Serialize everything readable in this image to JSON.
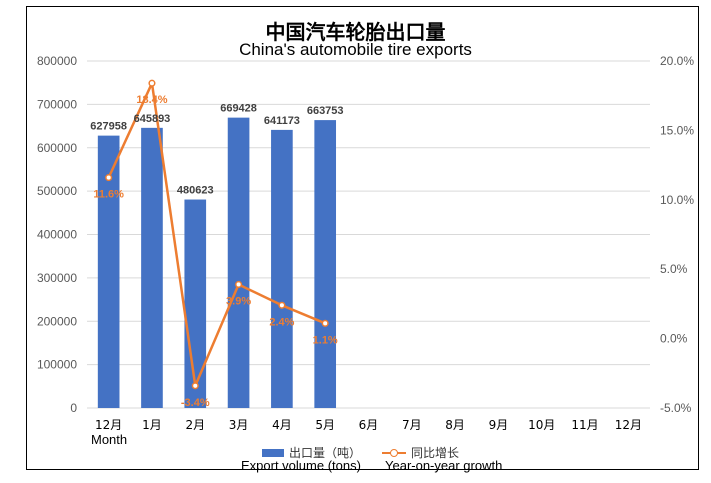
{
  "title_cn": "中国汽车轮胎出口量",
  "title_en": "China's automobile tire exports",
  "xlabel": "Month",
  "legend": {
    "bar_label_cn": "出口量（吨）",
    "bar_label_en": "Export volume (tons)",
    "line_label_cn": "同比增长",
    "line_label_en": "Year-on-year growth"
  },
  "colors": {
    "bar": "#4472c4",
    "line": "#ed7d31",
    "grid": "#d9d9d9",
    "tick": "#595959"
  },
  "chart_data": {
    "type": "bar",
    "categories": [
      "12月",
      "1月",
      "2月",
      "3月",
      "4月",
      "5月",
      "6月",
      "7月",
      "8月",
      "9月",
      "10月",
      "11月",
      "12月"
    ],
    "series": [
      {
        "name": "出口量（吨）",
        "type": "bar",
        "axis": "left",
        "values": [
          627958,
          645893,
          480623,
          669428,
          641173,
          663753,
          null,
          null,
          null,
          null,
          null,
          null,
          null
        ],
        "labels": [
          "627958",
          "645893",
          "480623",
          "669428",
          "641173",
          "663753"
        ]
      },
      {
        "name": "同比增长",
        "type": "line",
        "axis": "right",
        "values": [
          11.6,
          18.4,
          -3.4,
          3.9,
          2.4,
          1.1,
          null,
          null,
          null,
          null,
          null,
          null,
          null
        ],
        "labels": [
          "11.6%",
          "18.4%",
          "-3.4%",
          "3.9%",
          "2.4%",
          "1.1%"
        ]
      }
    ],
    "y_left": {
      "lim": [
        0,
        800000
      ],
      "ticks": [
        "0",
        "100000",
        "200000",
        "300000",
        "400000",
        "500000",
        "600000",
        "700000",
        "800000"
      ]
    },
    "y_right": {
      "lim": [
        -5,
        20
      ],
      "ticks": [
        "-5.0%",
        "0.0%",
        "5.0%",
        "10.0%",
        "15.0%",
        "20.0%"
      ]
    },
    "grid": true,
    "legend_position": "bottom"
  }
}
